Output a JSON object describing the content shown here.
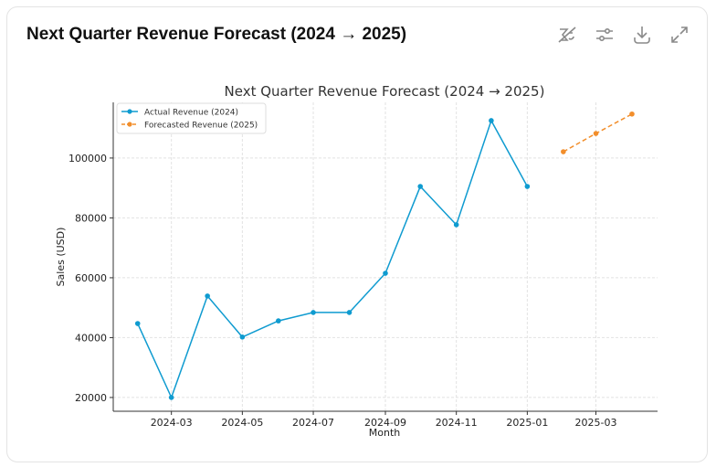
{
  "card": {
    "title": "Next Quarter Revenue Forecast (2024 → 2025)",
    "toolbar": [
      {
        "icon": "hide-chart-icon"
      },
      {
        "icon": "settings-sliders-icon"
      },
      {
        "icon": "download-icon"
      },
      {
        "icon": "expand-icon"
      }
    ]
  },
  "chart_data": {
    "type": "line",
    "title": "Next Quarter Revenue Forecast (2024 → 2025)",
    "xlabel": "Month",
    "ylabel": "Sales (USD)",
    "xlim": [
      "2024-01-11",
      "2025-04-23"
    ],
    "ylim": [
      15400,
      118600
    ],
    "xticks": [
      "2024-03",
      "2024-05",
      "2024-07",
      "2024-09",
      "2024-11",
      "2025-01",
      "2025-03"
    ],
    "yticks": [
      20000,
      40000,
      60000,
      80000,
      100000
    ],
    "grid": true,
    "legend": "top-left",
    "series": [
      {
        "name": "Actual Revenue (2024)",
        "color": "#0f9bd0",
        "style": "solid",
        "x": [
          "2024-02-01",
          "2024-03-01",
          "2024-04-01",
          "2024-05-01",
          "2024-06-01",
          "2024-07-01",
          "2024-08-01",
          "2024-09-01",
          "2024-10-01",
          "2024-11-01",
          "2024-12-01",
          "2025-01-01"
        ],
        "y": [
          44700,
          20000,
          53900,
          40200,
          45600,
          48400,
          48400,
          61500,
          90500,
          77700,
          112500,
          90500
        ]
      },
      {
        "name": "Forecasted Revenue (2025)",
        "color": "#f28e2b",
        "style": "dashed",
        "x": [
          "2025-02-01",
          "2025-03-01",
          "2025-04-01"
        ],
        "y": [
          102100,
          108200,
          114700
        ]
      }
    ]
  }
}
